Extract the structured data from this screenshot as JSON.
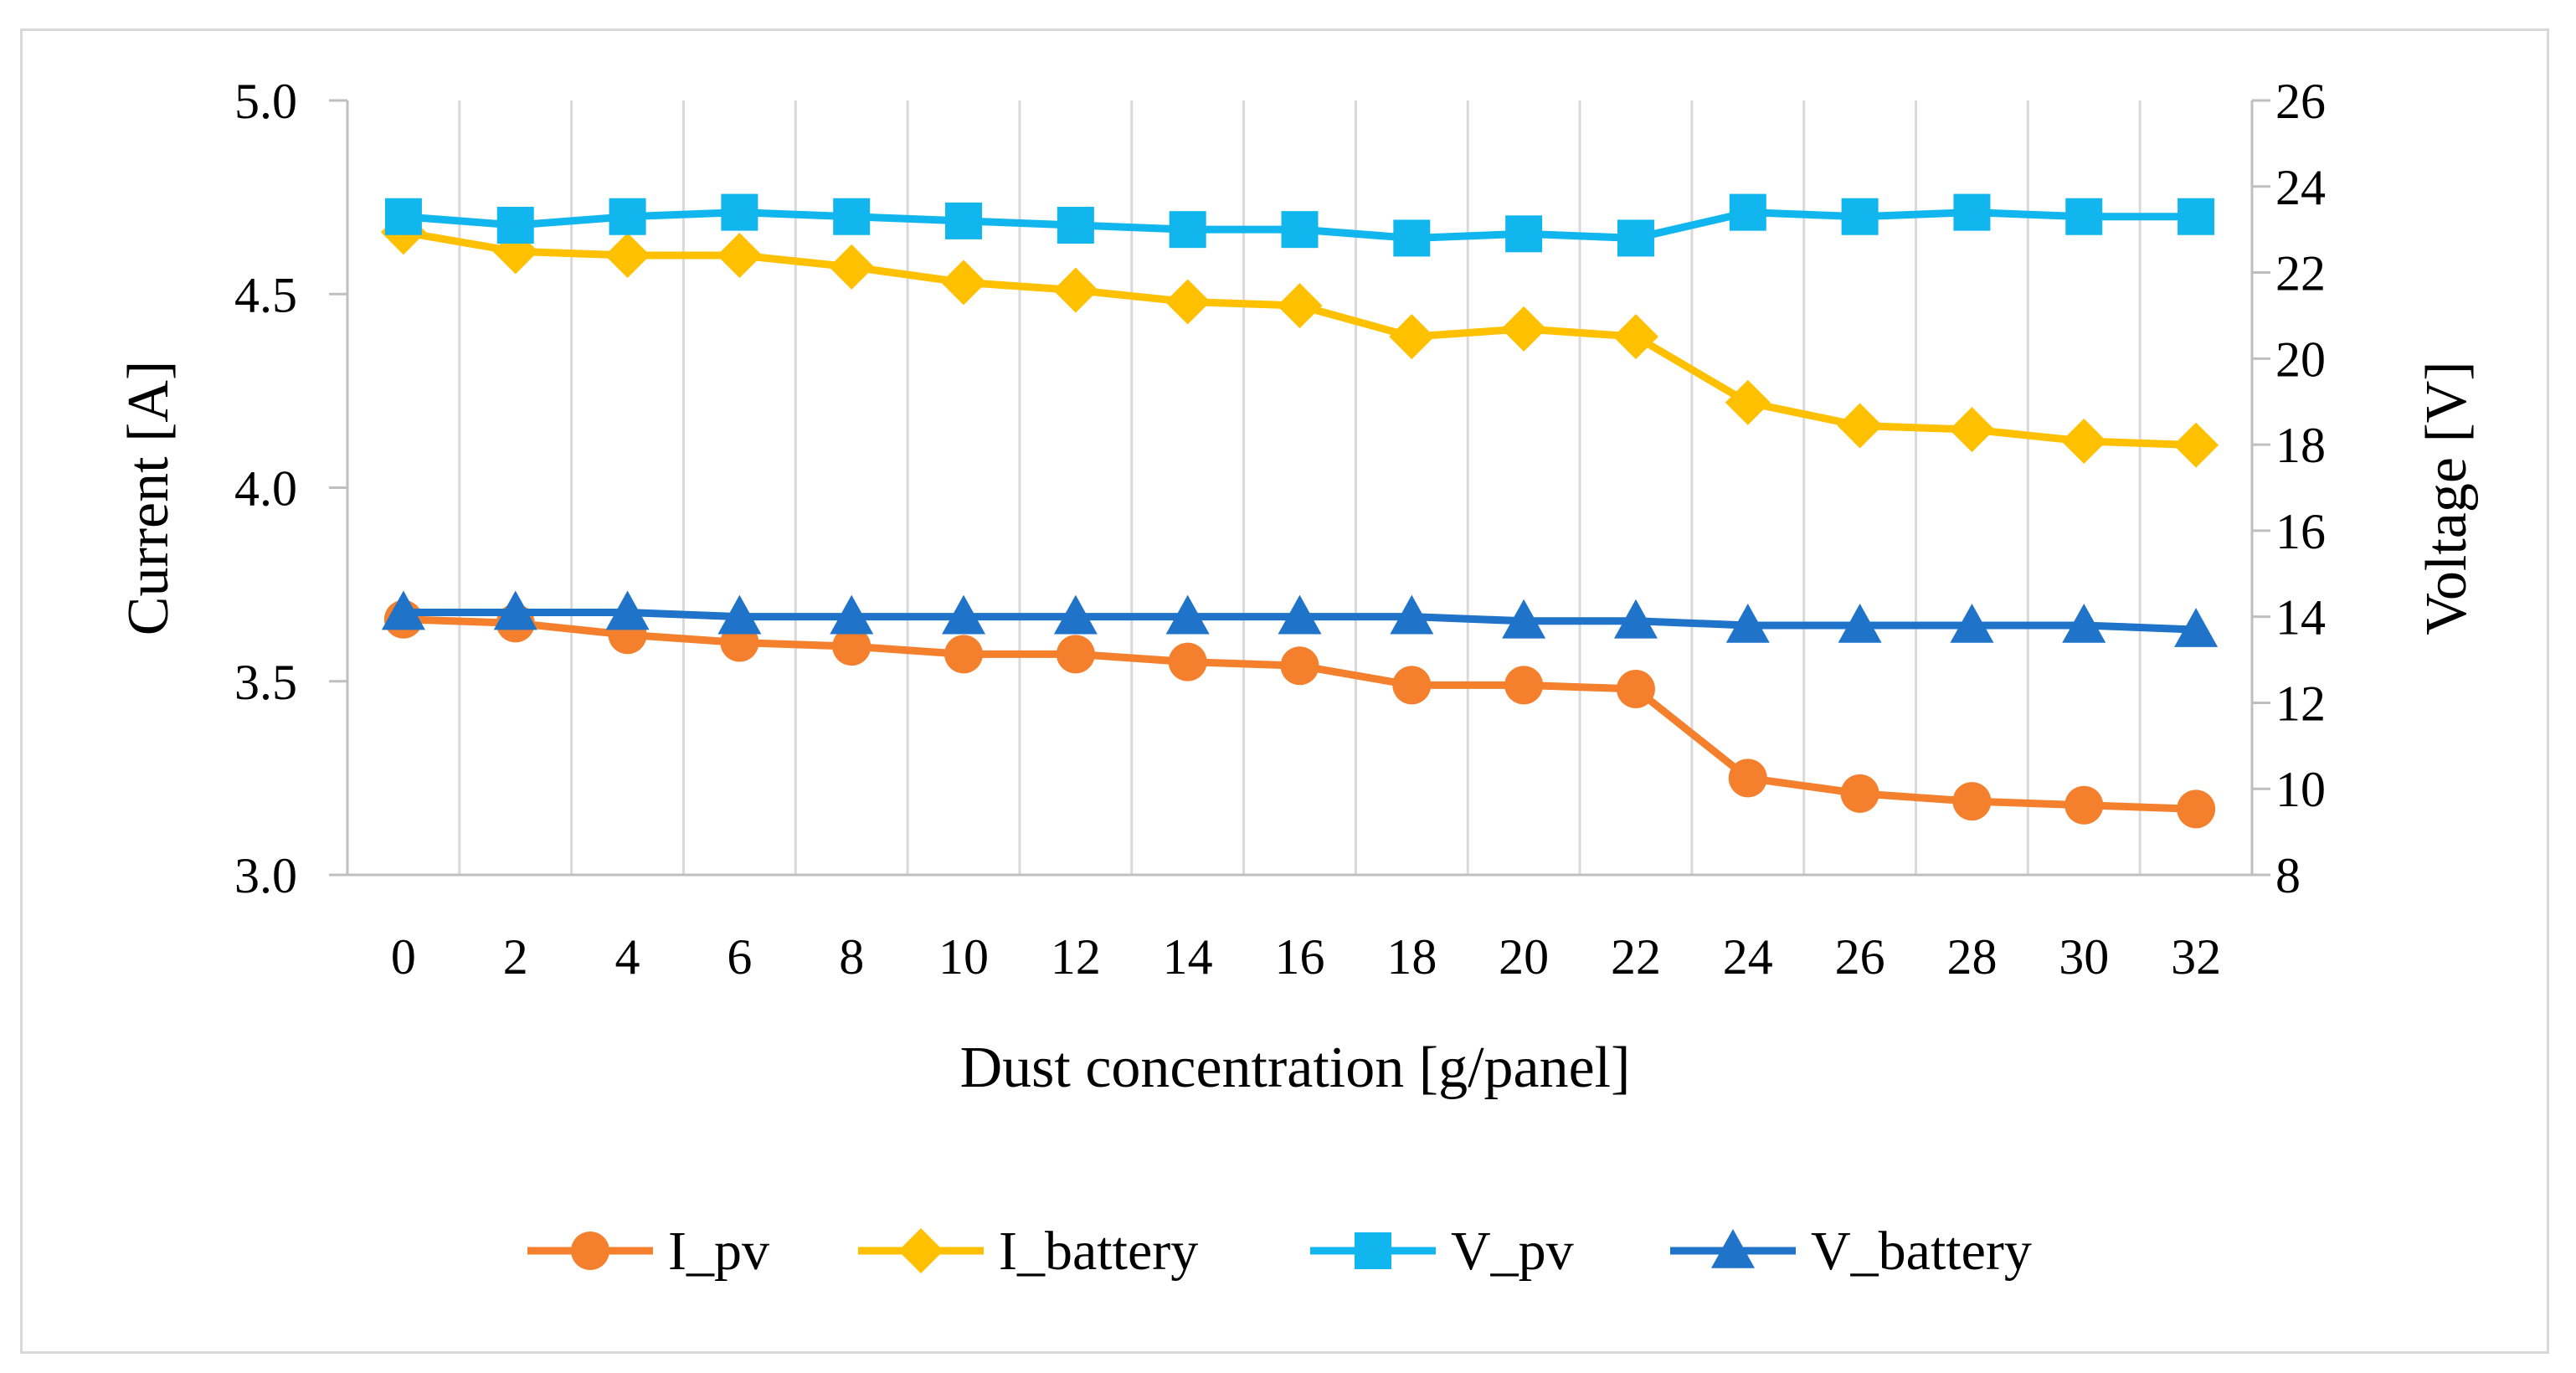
{
  "chart_data": {
    "type": "line",
    "title": "",
    "xlabel": "Dust concentration [g/panel]",
    "ylabel_left": "Current [A]",
    "ylabel_right": "Voltage [V]",
    "x": [
      0,
      2,
      4,
      6,
      8,
      10,
      12,
      14,
      16,
      18,
      20,
      22,
      24,
      26,
      28,
      30,
      32
    ],
    "x_tick_labels": [
      "0",
      "2",
      "4",
      "6",
      "8",
      "10",
      "12",
      "14",
      "16",
      "18",
      "20",
      "22",
      "24",
      "26",
      "28",
      "30",
      "32"
    ],
    "ylim_left": [
      3.0,
      5.0
    ],
    "ylim_right": [
      8,
      26
    ],
    "yticks_left": [
      "3.0",
      "3.5",
      "4.0",
      "4.5",
      "5.0"
    ],
    "yticks_right": [
      "8",
      "10",
      "12",
      "14",
      "16",
      "18",
      "20",
      "22",
      "24",
      "26"
    ],
    "grid": "vertical",
    "legend_position": "bottom",
    "series": [
      {
        "name": "I_pv",
        "axis": "left",
        "color": "#f47f2c",
        "marker": "circle",
        "values": [
          3.66,
          3.65,
          3.62,
          3.6,
          3.59,
          3.57,
          3.57,
          3.55,
          3.54,
          3.49,
          3.49,
          3.48,
          3.25,
          3.21,
          3.19,
          3.18,
          3.17
        ]
      },
      {
        "name": "I_battery",
        "axis": "left",
        "color": "#ffc000",
        "marker": "diamond",
        "values": [
          4.66,
          4.61,
          4.6,
          4.6,
          4.57,
          4.53,
          4.51,
          4.48,
          4.47,
          4.39,
          4.41,
          4.39,
          4.22,
          4.16,
          4.15,
          4.12,
          4.11
        ]
      },
      {
        "name": "V_pv",
        "axis": "right",
        "color": "#12b6ef",
        "marker": "square",
        "values": [
          23.3,
          23.1,
          23.3,
          23.4,
          23.3,
          23.2,
          23.1,
          23.0,
          23.0,
          22.8,
          22.9,
          22.8,
          23.4,
          23.3,
          23.4,
          23.3,
          23.3
        ]
      },
      {
        "name": "V_battery",
        "axis": "right",
        "color": "#1f73c9",
        "marker": "triangle",
        "values": [
          14.1,
          14.1,
          14.1,
          14.0,
          14.0,
          14.0,
          14.0,
          14.0,
          14.0,
          14.0,
          13.9,
          13.9,
          13.8,
          13.8,
          13.8,
          13.8,
          13.7
        ]
      }
    ]
  }
}
